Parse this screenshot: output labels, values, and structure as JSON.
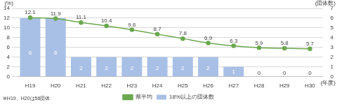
{
  "chart_data": {
    "type": "bar",
    "categories": [
      "H19",
      "H20",
      "H21",
      "H22",
      "H23",
      "H24",
      "H25",
      "H26",
      "H27",
      "H28",
      "H29",
      "H30"
    ],
    "series": [
      {
        "name": "18%以上の団体数",
        "type": "bar",
        "color": "#a9c0e6",
        "axis": "y2",
        "values": [
          6,
          6,
          2,
          2,
          2,
          2,
          2,
          2,
          1,
          0,
          0,
          0
        ]
      },
      {
        "name": "県平均",
        "type": "line",
        "color": "#6aa84f",
        "marker": "circle",
        "values": [
          12.1,
          11.9,
          11.1,
          10.4,
          9.6,
          8.7,
          7.8,
          6.9,
          6.3,
          5.9,
          5.8,
          5.7
        ]
      }
    ],
    "y_label": "(%)",
    "y2_label": "(団体数)",
    "x_label": "(年度)",
    "annotation": "※H19、H20は56団体",
    "ylim": [
      0,
      14
    ],
    "yticks": [
      0,
      2,
      4,
      6,
      8,
      10,
      12,
      14
    ],
    "y2lim": [
      0,
      7
    ],
    "y2ticks": [
      0,
      1,
      2,
      3,
      4,
      5,
      6,
      7
    ],
    "grid": true,
    "legend": "bottom",
    "data_labels": true
  }
}
